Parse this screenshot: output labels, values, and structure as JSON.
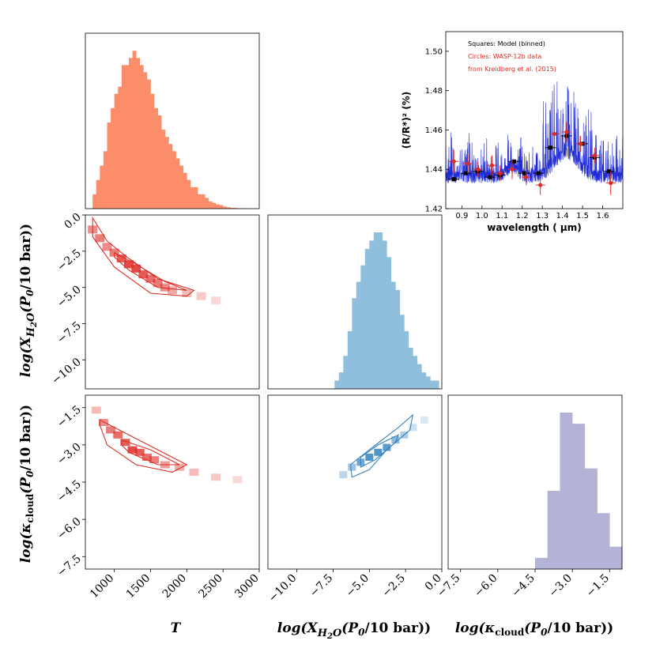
{
  "chart_data": [
    {
      "id": "hist_T",
      "type": "bar",
      "title": "",
      "xlabel": "T",
      "x_range": [
        600,
        3000
      ],
      "bin_edges": [
        700,
        750,
        800,
        850,
        900,
        950,
        1000,
        1050,
        1100,
        1150,
        1200,
        1250,
        1300,
        1350,
        1400,
        1450,
        1500,
        1550,
        1600,
        1650,
        1700,
        1750,
        1800,
        1850,
        1900,
        1950,
        2000,
        2050,
        2100,
        2150,
        2200,
        2250,
        2300,
        2350,
        2400,
        2450,
        2500,
        2550,
        2600,
        2650,
        2700,
        2750,
        2800,
        2850,
        2900
      ],
      "counts": [
        2,
        4,
        6,
        8,
        12,
        14,
        16,
        17,
        20,
        20,
        21,
        22,
        21,
        20,
        19,
        18,
        16,
        14,
        13,
        11,
        10,
        9,
        8,
        7,
        6,
        5,
        4,
        3,
        3,
        2,
        2,
        1.5,
        1,
        0.8,
        0.6,
        0.5,
        0.3,
        0.2,
        0.1,
        0.1,
        0.05,
        0.05,
        0,
        0
      ],
      "color": "#fc8d6a",
      "tick_labels": []
    },
    {
      "id": "hist_X",
      "type": "bar",
      "xlabel": "log(X_H2O(P0/10 bar))",
      "x_range": [
        -12,
        0
      ],
      "bin_edges": [
        -8.9,
        -8.6,
        -8.3,
        -8.0,
        -7.7,
        -7.4,
        -7.1,
        -6.8,
        -6.5,
        -6.2,
        -5.9,
        -5.6,
        -5.3,
        -5.0,
        -4.7,
        -4.4,
        -4.1,
        -3.8,
        -3.5,
        -3.2,
        -2.9,
        -2.6,
        -2.3,
        -2.0,
        -1.7,
        -1.4,
        -1.1,
        -0.8,
        -0.5,
        -0.2
      ],
      "counts": [
        0,
        0,
        0,
        0,
        0,
        1,
        2,
        4,
        7,
        11,
        13,
        15,
        17,
        18,
        19,
        19,
        18,
        16,
        13,
        12,
        9,
        7,
        5,
        4,
        3,
        2,
        1.5,
        1,
        1,
        0.5
      ],
      "color": "#8fbfdd"
    },
    {
      "id": "hist_K",
      "type": "bar",
      "xlabel": "log(kappa_cloud(P0/10 bar))",
      "x_range": [
        -8,
        -1
      ],
      "bin_edges": [
        -5.5,
        -5.0,
        -4.5,
        -4.0,
        -3.5,
        -3.0,
        -2.5,
        -2.0,
        -1.5,
        -1.0
      ],
      "counts": [
        0,
        0,
        1,
        7,
        14,
        13,
        9,
        5,
        2
      ],
      "color": "#b3b3d7"
    },
    {
      "id": "cont_TX",
      "type": "heatmap",
      "x_range": [
        600,
        3000
      ],
      "y_range": [
        -12,
        0
      ],
      "cells": [
        [
          700,
          -1,
          0.6
        ],
        [
          800,
          -1.6,
          0.7
        ],
        [
          900,
          -2.2,
          0.6
        ],
        [
          1000,
          -2.6,
          0.7
        ],
        [
          1100,
          -3,
          0.9
        ],
        [
          1200,
          -3.4,
          1
        ],
        [
          1300,
          -3.7,
          1
        ],
        [
          1400,
          -4.1,
          0.9
        ],
        [
          1500,
          -4.4,
          0.8
        ],
        [
          1600,
          -4.7,
          0.7
        ],
        [
          1700,
          -5,
          0.6
        ],
        [
          1800,
          -5.2,
          0.4
        ],
        [
          2000,
          -5.4,
          0.3
        ],
        [
          2200,
          -5.6,
          0.2
        ],
        [
          2400,
          -5.9,
          0.1
        ]
      ],
      "contours": [
        [
          [
            700,
            -0.2
          ],
          [
            900,
            -1.8
          ],
          [
            1200,
            -3
          ],
          [
            1600,
            -4.4
          ],
          [
            2100,
            -5.2
          ],
          [
            2000,
            -5.6
          ],
          [
            1500,
            -5.4
          ],
          [
            1000,
            -3.6
          ],
          [
            700,
            -1.5
          ]
        ],
        [
          [
            1000,
            -2.6
          ],
          [
            1300,
            -3.4
          ],
          [
            1700,
            -4.6
          ],
          [
            2000,
            -5.2
          ],
          [
            1600,
            -5.0
          ],
          [
            1200,
            -3.8
          ],
          [
            1000,
            -2.9
          ]
        ]
      ],
      "color": "#de2d26",
      "ylabel": "log(X_H2O(P0/10 bar))",
      "yticks": [
        "0.0",
        "−2.5",
        "−5.0",
        "−7.5",
        "−10.0"
      ]
    },
    {
      "id": "cont_TK",
      "type": "heatmap",
      "x_range": [
        600,
        3000
      ],
      "y_range": [
        -8,
        -1
      ],
      "cells": [
        [
          750,
          -1.6,
          0.3
        ],
        [
          850,
          -2.1,
          0.6
        ],
        [
          950,
          -2.4,
          0.7
        ],
        [
          1050,
          -2.6,
          0.8
        ],
        [
          1150,
          -2.9,
          0.9
        ],
        [
          1250,
          -3.2,
          1
        ],
        [
          1350,
          -3.3,
          0.9
        ],
        [
          1450,
          -3.5,
          0.8
        ],
        [
          1550,
          -3.6,
          0.7
        ],
        [
          1700,
          -3.8,
          0.5
        ],
        [
          1900,
          -3.9,
          0.4
        ],
        [
          2100,
          -4.1,
          0.3
        ],
        [
          2400,
          -4.3,
          0.2
        ],
        [
          2700,
          -4.4,
          0.1
        ]
      ],
      "contours": [
        [
          [
            800,
            -2.0
          ],
          [
            1200,
            -2.6
          ],
          [
            1600,
            -3.2
          ],
          [
            2000,
            -3.8
          ],
          [
            1800,
            -4.1
          ],
          [
            1300,
            -3.8
          ],
          [
            900,
            -3.0
          ],
          [
            800,
            -2.2
          ]
        ],
        [
          [
            1100,
            -2.8
          ],
          [
            1500,
            -3.2
          ],
          [
            1900,
            -3.8
          ],
          [
            1600,
            -3.8
          ],
          [
            1200,
            -3.3
          ],
          [
            1100,
            -3.0
          ]
        ]
      ],
      "color": "#de2d26",
      "ylabel": "log(kappa_cloud(P0/10 bar))",
      "yticks": [
        "−1.5",
        "−3.0",
        "−4.5",
        "−6.0",
        "−7.5"
      ],
      "xticks": [
        "1000",
        "1500",
        "2000",
        "2500",
        "3000"
      ]
    },
    {
      "id": "cont_XK",
      "type": "heatmap",
      "x_range": [
        -12,
        0
      ],
      "y_range": [
        -8,
        -1
      ],
      "cells": [
        [
          -6.8,
          -4.2,
          0.3
        ],
        [
          -6.2,
          -3.9,
          0.5
        ],
        [
          -5.6,
          -3.7,
          0.8
        ],
        [
          -5.0,
          -3.5,
          1
        ],
        [
          -4.4,
          -3.3,
          1
        ],
        [
          -3.8,
          -3.1,
          0.9
        ],
        [
          -3.2,
          -2.8,
          0.6
        ],
        [
          -2.6,
          -2.6,
          0.4
        ],
        [
          -2.0,
          -2.3,
          0.2
        ],
        [
          -1.2,
          -2.0,
          0.1
        ]
      ],
      "contours": [
        [
          [
            -6.2,
            -4.3
          ],
          [
            -6.3,
            -3.8
          ],
          [
            -5.0,
            -3.2
          ],
          [
            -3.0,
            -2.3
          ],
          [
            -2.0,
            -1.8
          ],
          [
            -2.2,
            -2.4
          ],
          [
            -3.8,
            -3.2
          ],
          [
            -5.0,
            -4.0
          ]
        ],
        [
          [
            -5.6,
            -3.9
          ],
          [
            -5.6,
            -3.5
          ],
          [
            -4.4,
            -3.0
          ],
          [
            -3.0,
            -2.6
          ],
          [
            -3.2,
            -2.9
          ],
          [
            -4.6,
            -3.6
          ]
        ]
      ],
      "color": "#3182bd",
      "xticks": [
        "−10.0",
        "−7.5",
        "−5.0",
        "−2.5",
        "0.0"
      ]
    },
    {
      "id": "spectrum",
      "type": "line",
      "xlabel": "wavelength ( μm)",
      "ylabel": "(R/R*)² (%)",
      "x_range": [
        0.82,
        1.7
      ],
      "y_range": [
        1.42,
        1.51
      ],
      "xticks": [
        "0.9",
        "1.0",
        "1.1",
        "1.2",
        "1.3",
        "1.4",
        "1.5",
        "1.6"
      ],
      "yticks": [
        "1.42",
        "1.44",
        "1.46",
        "1.48",
        "1.50"
      ],
      "legend": [
        "Squares: Model (binned)",
        "Circles: WASP-12b data",
        "from Kreidberg et al. (2015)"
      ],
      "model_binned": [
        [
          0.86,
          1.435
        ],
        [
          0.92,
          1.438
        ],
        [
          0.98,
          1.439
        ],
        [
          1.04,
          1.436
        ],
        [
          1.09,
          1.437
        ],
        [
          1.16,
          1.444
        ],
        [
          1.21,
          1.438
        ],
        [
          1.28,
          1.438
        ],
        [
          1.34,
          1.451
        ],
        [
          1.42,
          1.457
        ],
        [
          1.5,
          1.453
        ],
        [
          1.56,
          1.446
        ],
        [
          1.63,
          1.439
        ]
      ],
      "data": [
        [
          0.86,
          1.444,
          0.006
        ],
        [
          0.93,
          1.443,
          0.005
        ],
        [
          0.98,
          1.44,
          0.004
        ],
        [
          1.05,
          1.442,
          0.005
        ],
        [
          1.09,
          1.438,
          0.004
        ],
        [
          1.15,
          1.44,
          0.005
        ],
        [
          1.22,
          1.436,
          0.004
        ],
        [
          1.29,
          1.432,
          0.005
        ],
        [
          1.36,
          1.458,
          0.005
        ],
        [
          1.42,
          1.459,
          0.005
        ],
        [
          1.49,
          1.453,
          0.004
        ],
        [
          1.56,
          1.447,
          0.004
        ],
        [
          1.64,
          1.433,
          0.006
        ]
      ]
    }
  ],
  "labels": {
    "x1": "T",
    "x2": "log(X",
    "x2sub": "H",
    "x2subsub": "2",
    "x2subO": "O",
    "x2rest": "(P",
    "x2zero": "0",
    "x2end": "/10 bar))",
    "x3": "log(κ",
    "x3sub": "cloud",
    "x3rest": "(P",
    "x3zero": "0",
    "x3end": "/10 bar))",
    "y1": "log(X",
    "y1sub": "H",
    "y1subsub": "2",
    "y1subO": "O",
    "y1rest": "(P",
    "y1zero": "0",
    "y1end": "/10 bar))",
    "y2": "log(κ",
    "y2sub": "cloud",
    "y2rest": "(P",
    "y2zero": "0",
    "y2end": "/10 bar))"
  },
  "colors": {
    "red": "#de2d26",
    "blue": "#1f2bd6",
    "black": "#000000"
  }
}
